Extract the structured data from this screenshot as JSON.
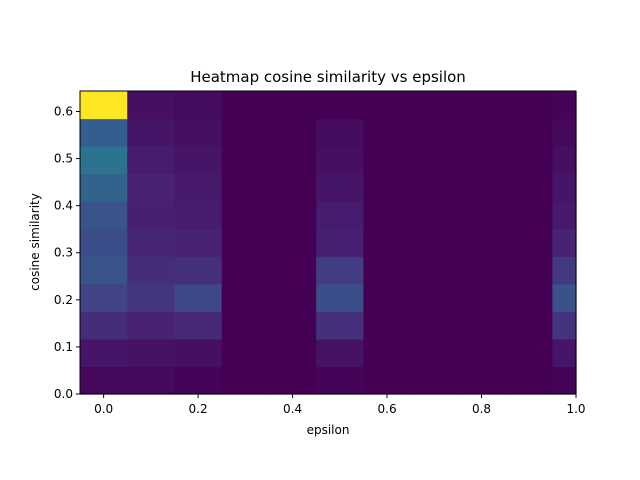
{
  "chart_data": {
    "type": "heatmap",
    "title": "Heatmap cosine similarity vs epsilon",
    "xlabel": "epsilon",
    "ylabel": "cosine similarity",
    "colormap": "viridis",
    "x_bin_edges": [
      -0.05,
      0.05,
      0.15,
      0.25,
      0.35,
      0.45,
      0.55,
      0.65,
      0.75,
      0.85,
      0.95,
      1.0
    ],
    "y_bin_edges": [
      0.0,
      0.0585,
      0.117,
      0.1755,
      0.234,
      0.2925,
      0.351,
      0.4095,
      0.468,
      0.5265,
      0.585,
      0.6435
    ],
    "xlim": [
      -0.05,
      1.0
    ],
    "ylim": [
      0.0,
      0.6435
    ],
    "x_ticks": [
      0.0,
      0.2,
      0.4,
      0.6,
      0.8,
      1.0
    ],
    "x_tick_labels": [
      "0.0",
      "0.2",
      "0.4",
      "0.6",
      "0.8",
      "1.0"
    ],
    "y_ticks": [
      0.0,
      0.1,
      0.2,
      0.3,
      0.4,
      0.5,
      0.6
    ],
    "y_tick_labels": [
      "0.0",
      "0.1",
      "0.2",
      "0.3",
      "0.4",
      "0.5",
      "0.6"
    ],
    "values_normalized": [
      [
        0.02,
        0.02,
        0.01,
        0.0,
        0.0,
        0.01,
        0.0,
        0.0,
        0.0,
        0.0,
        0.01
      ],
      [
        0.06,
        0.05,
        0.04,
        0.0,
        0.0,
        0.05,
        0.0,
        0.0,
        0.0,
        0.0,
        0.06
      ],
      [
        0.13,
        0.1,
        0.12,
        0.0,
        0.0,
        0.14,
        0.0,
        0.0,
        0.0,
        0.0,
        0.15
      ],
      [
        0.2,
        0.16,
        0.22,
        0.0,
        0.0,
        0.24,
        0.0,
        0.0,
        0.0,
        0.0,
        0.25
      ],
      [
        0.26,
        0.13,
        0.14,
        0.0,
        0.0,
        0.18,
        0.0,
        0.0,
        0.0,
        0.0,
        0.17
      ],
      [
        0.24,
        0.11,
        0.1,
        0.0,
        0.0,
        0.09,
        0.0,
        0.0,
        0.0,
        0.0,
        0.1
      ],
      [
        0.26,
        0.09,
        0.08,
        0.0,
        0.0,
        0.08,
        0.0,
        0.0,
        0.0,
        0.0,
        0.07
      ],
      [
        0.32,
        0.1,
        0.07,
        0.0,
        0.0,
        0.06,
        0.0,
        0.0,
        0.0,
        0.0,
        0.06
      ],
      [
        0.38,
        0.08,
        0.06,
        0.0,
        0.0,
        0.04,
        0.0,
        0.0,
        0.0,
        0.0,
        0.04
      ],
      [
        0.3,
        0.06,
        0.04,
        0.0,
        0.0,
        0.03,
        0.0,
        0.0,
        0.0,
        0.0,
        0.02
      ],
      [
        1.0,
        0.04,
        0.03,
        0.0,
        0.0,
        0.0,
        0.0,
        0.0,
        0.0,
        0.0,
        0.01
      ]
    ],
    "grid": false,
    "legend": "none"
  }
}
